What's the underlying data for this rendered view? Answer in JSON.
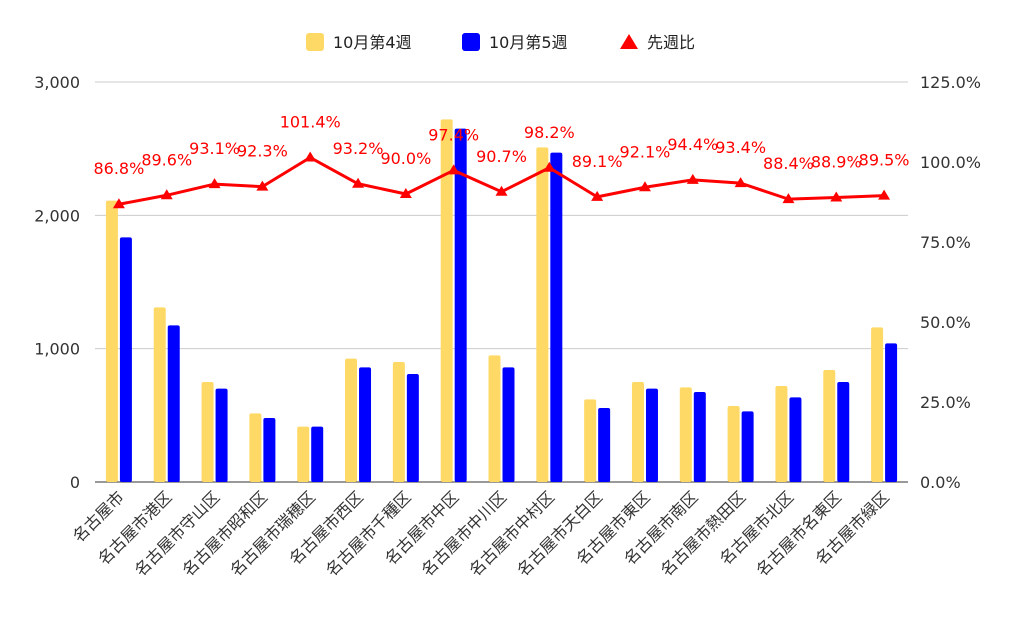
{
  "chart_data": {
    "type": "bar",
    "categories": [
      "名古屋市",
      "名古屋市港区",
      "名古屋市守山区",
      "名古屋市昭和区",
      "名古屋市瑞穂区",
      "名古屋市西区",
      "名古屋市千種区",
      "名古屋市中区",
      "名古屋市中川区",
      "名古屋市中村区",
      "名古屋市天白区",
      "名古屋市東区",
      "名古屋市南区",
      "名古屋市熱田区",
      "名古屋市北区",
      "名古屋市名東区",
      "名古屋市緑区"
    ],
    "series": [
      {
        "name": "10月第4週",
        "type": "bar",
        "axis": "left",
        "color": "#FFD966",
        "values": [
          2110,
          1310,
          750,
          515,
          415,
          925,
          900,
          2720,
          950,
          2510,
          620,
          750,
          710,
          570,
          720,
          840,
          1160
        ]
      },
      {
        "name": "10月第5週",
        "type": "bar",
        "axis": "left",
        "color": "#0000FF",
        "values": [
          1835,
          1175,
          700,
          480,
          415,
          860,
          810,
          2650,
          860,
          2470,
          555,
          700,
          675,
          530,
          635,
          750,
          1040
        ]
      },
      {
        "name": "先週比",
        "type": "line",
        "axis": "right",
        "color": "#FF0000",
        "values": [
          86.8,
          89.6,
          93.1,
          92.3,
          101.4,
          93.2,
          90.0,
          97.4,
          90.7,
          98.2,
          89.1,
          92.1,
          94.4,
          93.4,
          88.4,
          88.9,
          89.5
        ],
        "labels": [
          "86.8%",
          "89.6%",
          "93.1%",
          "92.3%",
          "101.4%",
          "93.2%",
          "90.0%",
          "97.4%",
          "90.7%",
          "98.2%",
          "89.1%",
          "92.1%",
          "94.4%",
          "93.4%",
          "88.4%",
          "88.9%",
          "89.5%"
        ]
      }
    ],
    "y_left": {
      "min": 0,
      "max": 3000,
      "ticks": [
        0,
        1000,
        2000,
        3000
      ],
      "tick_labels": [
        "0",
        "1,000",
        "2,000",
        "3,000"
      ]
    },
    "y_right": {
      "min": 0,
      "max": 125,
      "ticks": [
        0,
        25,
        50,
        75,
        100,
        125
      ],
      "tick_labels": [
        "0.0%",
        "25.0%",
        "50.0%",
        "75.0%",
        "100.0%",
        "125.0%"
      ]
    },
    "legend_position": "top-center",
    "grid": true
  },
  "legend": [
    {
      "label": "10月第4週",
      "color": "#FFD966",
      "marker": "square"
    },
    {
      "label": "10月第5週",
      "color": "#0000FF",
      "marker": "square"
    },
    {
      "label": "先週比",
      "color": "#FF0000",
      "marker": "triangle"
    }
  ]
}
